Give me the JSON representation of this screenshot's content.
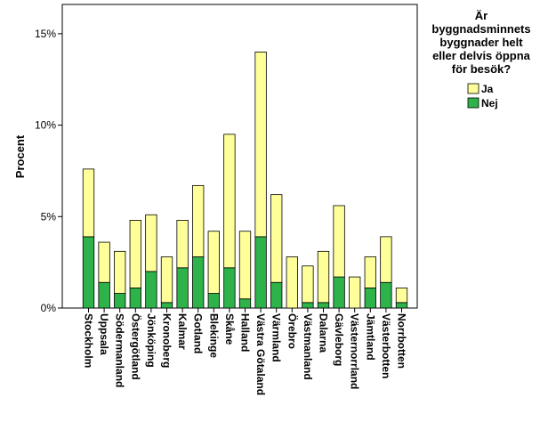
{
  "chart_data": {
    "type": "bar",
    "stacked": true,
    "categories": [
      "Stockholm",
      "Uppsala",
      "Södermanland",
      "Östergötland",
      "Jönköping",
      "Kronoberg",
      "Kalmar",
      "Gotland",
      "Blekinge",
      "Skåne",
      "Halland",
      "Västra Götaland",
      "Värmland",
      "Örebro",
      "Västmanland",
      "Dalarna",
      "Gävleborg",
      "Västernorrland",
      "Jämtland",
      "Västerbotten",
      "Norrbotten"
    ],
    "series": [
      {
        "name": "Nej",
        "color": "#2db34a",
        "values": [
          3.9,
          1.4,
          0.8,
          1.1,
          2.0,
          0.3,
          2.2,
          2.8,
          0.8,
          2.2,
          0.5,
          3.9,
          1.4,
          0.0,
          0.3,
          0.3,
          1.7,
          0.0,
          1.1,
          1.4,
          0.3
        ]
      },
      {
        "name": "Ja",
        "color": "#ffff99",
        "values": [
          3.7,
          2.2,
          2.3,
          3.7,
          3.1,
          2.5,
          2.6,
          3.9,
          3.4,
          7.3,
          3.7,
          10.1,
          4.8,
          2.8,
          2.0,
          2.8,
          3.9,
          1.7,
          1.7,
          2.5,
          0.8
        ]
      }
    ],
    "ylabel": "Procent",
    "ylim": [
      0,
      16.6
    ],
    "yticks": [
      0,
      5,
      10,
      15
    ],
    "ytick_labels": [
      "0%",
      "5%",
      "10%",
      "15%"
    ],
    "legend": {
      "title_lines": [
        "Är",
        "byggnadsminnets",
        "byggnader helt",
        "eller delvis öppna",
        "för besök?"
      ],
      "entries": [
        "Ja",
        "Nej"
      ],
      "placement": "right"
    },
    "grid": false
  }
}
